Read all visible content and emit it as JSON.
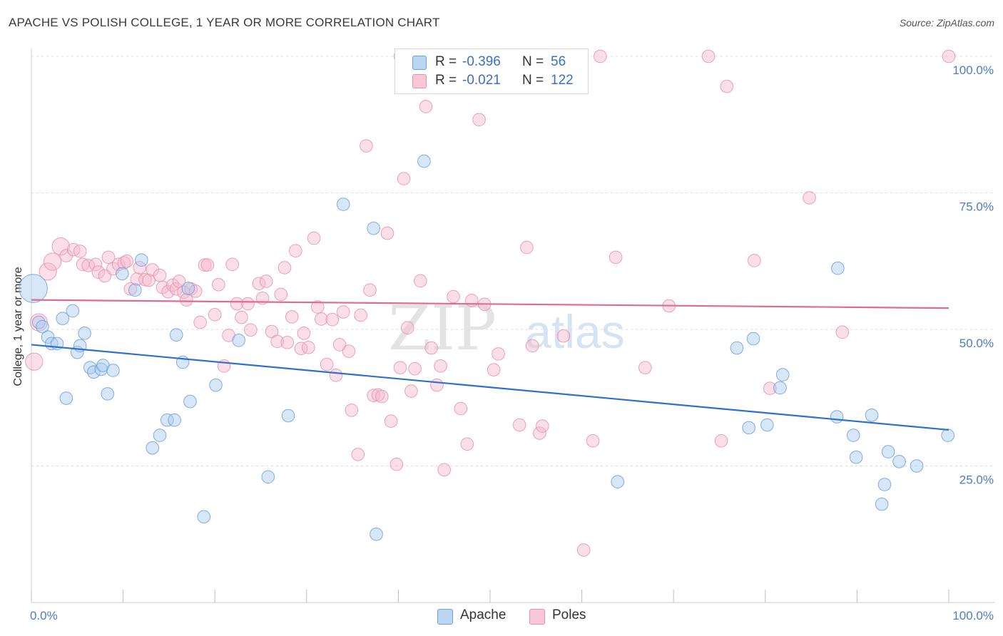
{
  "title": "APACHE VS POLISH COLLEGE, 1 YEAR OR MORE CORRELATION CHART",
  "source": "Source: ZipAtlas.com",
  "watermark": {
    "zip": "ZIP",
    "atlas": "atlas"
  },
  "legend": {
    "apache": {
      "r_label": "R =",
      "r_value": "-0.396",
      "n_label": "N =",
      "n_value": "56"
    },
    "poles": {
      "r_label": "R =",
      "r_value": "-0.021",
      "n_label": "N =",
      "n_value": "122"
    }
  },
  "colors": {
    "apache_fill": "#a9c9f0",
    "apache_stroke": "#6b9fde",
    "apache_line": "#2f6fd0",
    "poles_fill": "#f7b8cb",
    "poles_stroke": "#e890ad",
    "poles_line": "#e06a94",
    "tick_text": "#4a7cc7"
  },
  "chart_data": {
    "type": "scatter",
    "title": "APACHE VS POLISH COLLEGE, 1 YEAR OR MORE CORRELATION CHART",
    "xlabel": "",
    "ylabel": "College, 1 year or more",
    "xlim": [
      0,
      100
    ],
    "ylim": [
      0,
      100
    ],
    "x_tick_labels": [
      "0.0%",
      "100.0%"
    ],
    "y_ticks": [
      {
        "value": 25,
        "label": "25.0%"
      },
      {
        "value": 50,
        "label": "50.0%"
      },
      {
        "value": 75,
        "label": "75.0%"
      },
      {
        "value": 100,
        "label": "100.0%"
      }
    ],
    "series": [
      {
        "name": "Apache",
        "trend": {
          "x0": 0,
          "y0": 47.2,
          "x1": 100,
          "y1": 31.6
        },
        "points": [
          [
            0.2,
            57.5,
            18
          ],
          [
            0.8,
            51.3,
            8
          ],
          [
            1.2,
            50.5,
            8
          ],
          [
            1.8,
            48.6,
            8
          ],
          [
            2.2,
            47.4,
            8
          ],
          [
            2.8,
            47.4,
            8
          ],
          [
            3.4,
            52.0,
            8
          ],
          [
            3.8,
            37.4,
            8
          ],
          [
            4.5,
            53.4,
            8
          ],
          [
            5.0,
            45.8,
            8
          ],
          [
            5.3,
            47.0,
            8
          ],
          [
            5.8,
            49.3,
            8
          ],
          [
            6.4,
            43.0,
            8
          ],
          [
            6.8,
            42.2,
            8
          ],
          [
            7.6,
            42.7,
            8
          ],
          [
            7.8,
            43.4,
            8
          ],
          [
            8.3,
            38.2,
            8
          ],
          [
            8.9,
            42.5,
            8
          ],
          [
            9.9,
            60.2,
            8
          ],
          [
            11.3,
            57.2,
            8
          ],
          [
            12.0,
            62.7,
            8
          ],
          [
            13.2,
            28.3,
            8
          ],
          [
            14.0,
            30.6,
            8
          ],
          [
            14.8,
            33.4,
            8
          ],
          [
            15.6,
            33.4,
            8
          ],
          [
            15.8,
            49.0,
            8
          ],
          [
            16.5,
            44.0,
            8
          ],
          [
            17.1,
            57.5,
            8
          ],
          [
            17.3,
            36.8,
            8
          ],
          [
            18.8,
            15.7,
            8
          ],
          [
            20.1,
            39.8,
            8
          ],
          [
            22.6,
            48.0,
            8
          ],
          [
            25.8,
            23.0,
            8
          ],
          [
            28.0,
            34.2,
            8
          ],
          [
            34.0,
            72.9,
            8
          ],
          [
            37.3,
            68.5,
            8
          ],
          [
            37.6,
            12.5,
            8
          ],
          [
            42.8,
            80.8,
            8
          ],
          [
            63.9,
            22.1,
            8
          ],
          [
            76.9,
            46.6,
            8
          ],
          [
            78.2,
            32.0,
            8
          ],
          [
            78.7,
            48.3,
            8
          ],
          [
            80.2,
            32.5,
            8
          ],
          [
            81.6,
            39.3,
            8
          ],
          [
            81.9,
            41.7,
            8
          ],
          [
            87.9,
            61.2,
            8
          ],
          [
            87.8,
            34.0,
            8
          ],
          [
            89.6,
            30.6,
            8
          ],
          [
            89.9,
            26.6,
            8
          ],
          [
            91.6,
            34.3,
            8
          ],
          [
            92.7,
            18.0,
            8
          ],
          [
            93.0,
            21.6,
            8
          ],
          [
            93.4,
            27.6,
            8
          ],
          [
            94.6,
            25.8,
            8
          ],
          [
            96.5,
            25.0,
            8
          ],
          [
            99.9,
            30.6,
            8
          ]
        ]
      },
      {
        "name": "Poles",
        "trend": {
          "x0": 0,
          "y0": 55.4,
          "x1": 100,
          "y1": 53.9
        },
        "points": [
          [
            0.3,
            44.1,
            11
          ],
          [
            0.8,
            51.3,
            11
          ],
          [
            1.8,
            60.6,
            11
          ],
          [
            2.3,
            62.4,
            11
          ],
          [
            3.2,
            65.2,
            11
          ],
          [
            3.8,
            63.5,
            8
          ],
          [
            4.6,
            64.6,
            8
          ],
          [
            5.3,
            64.3,
            8
          ],
          [
            5.6,
            61.9,
            8
          ],
          [
            6.2,
            61.7,
            8
          ],
          [
            7.0,
            61.9,
            8
          ],
          [
            7.3,
            60.5,
            8
          ],
          [
            8.0,
            59.8,
            8
          ],
          [
            8.4,
            63.2,
            8
          ],
          [
            8.9,
            61.1,
            8
          ],
          [
            9.5,
            61.9,
            8
          ],
          [
            10.1,
            62.2,
            8
          ],
          [
            10.4,
            62.5,
            8
          ],
          [
            10.8,
            57.4,
            8
          ],
          [
            11.5,
            59.2,
            8
          ],
          [
            11.8,
            61.3,
            8
          ],
          [
            12.4,
            59.1,
            8
          ],
          [
            12.8,
            59.0,
            8
          ],
          [
            13.2,
            60.9,
            8
          ],
          [
            14.0,
            59.9,
            8
          ],
          [
            14.3,
            57.7,
            8
          ],
          [
            14.9,
            56.9,
            8
          ],
          [
            15.4,
            58.1,
            8
          ],
          [
            15.8,
            57.4,
            8
          ],
          [
            16.1,
            58.8,
            8
          ],
          [
            16.6,
            56.8,
            8
          ],
          [
            16.9,
            55.4,
            8
          ],
          [
            17.4,
            57.4,
            8
          ],
          [
            17.9,
            57.0,
            8
          ],
          [
            18.4,
            51.3,
            8
          ],
          [
            18.9,
            61.8,
            8
          ],
          [
            19.2,
            61.8,
            8
          ],
          [
            20.0,
            52.7,
            8
          ],
          [
            20.4,
            58.2,
            8
          ],
          [
            21.0,
            43.3,
            8
          ],
          [
            21.5,
            48.9,
            8
          ],
          [
            21.9,
            61.9,
            8
          ],
          [
            22.4,
            54.7,
            8
          ],
          [
            22.9,
            52.2,
            8
          ],
          [
            23.6,
            54.7,
            8
          ],
          [
            23.9,
            49.9,
            8
          ],
          [
            24.8,
            58.4,
            8
          ],
          [
            25.2,
            55.7,
            8
          ],
          [
            25.6,
            58.8,
            8
          ],
          [
            26.2,
            49.6,
            8
          ],
          [
            26.8,
            47.8,
            8
          ],
          [
            27.2,
            56.4,
            8
          ],
          [
            27.6,
            61.3,
            8
          ],
          [
            27.9,
            47.6,
            8
          ],
          [
            28.4,
            52.3,
            8
          ],
          [
            28.8,
            64.4,
            8
          ],
          [
            29.4,
            46.5,
            8
          ],
          [
            29.7,
            49.3,
            8
          ],
          [
            30.2,
            46.7,
            8
          ],
          [
            30.8,
            66.7,
            8
          ],
          [
            31.2,
            54.1,
            8
          ],
          [
            31.6,
            51.9,
            8
          ],
          [
            32.2,
            43.6,
            8
          ],
          [
            32.8,
            51.8,
            8
          ],
          [
            33.2,
            41.6,
            8
          ],
          [
            33.6,
            47.2,
            8
          ],
          [
            34.0,
            53.2,
            8
          ],
          [
            34.6,
            46.0,
            8
          ],
          [
            34.9,
            35.2,
            8
          ],
          [
            35.6,
            27.1,
            8
          ],
          [
            35.9,
            52.6,
            8
          ],
          [
            36.5,
            83.6,
            8
          ],
          [
            36.9,
            57.2,
            8
          ],
          [
            37.3,
            37.9,
            8
          ],
          [
            37.8,
            38.0,
            8
          ],
          [
            38.2,
            37.7,
            8
          ],
          [
            38.8,
            67.6,
            8
          ],
          [
            39.2,
            33.2,
            8
          ],
          [
            39.8,
            25.3,
            8
          ],
          [
            40.2,
            43.0,
            8
          ],
          [
            40.6,
            77.6,
            8
          ],
          [
            41.0,
            50.3,
            8
          ],
          [
            41.4,
            38.7,
            8
          ],
          [
            41.8,
            42.8,
            8
          ],
          [
            42.4,
            58.9,
            8
          ],
          [
            43.0,
            90.8,
            8
          ],
          [
            43.6,
            46.6,
            8
          ],
          [
            44.2,
            39.8,
            8
          ],
          [
            44.6,
            43.3,
            8
          ],
          [
            45.0,
            24.3,
            8
          ],
          [
            46.0,
            56.0,
            8
          ],
          [
            46.8,
            35.5,
            8
          ],
          [
            47.5,
            29.0,
            8
          ],
          [
            48.0,
            55.3,
            8
          ],
          [
            48.8,
            88.4,
            8
          ],
          [
            49.4,
            54.6,
            8
          ],
          [
            50.4,
            42.6,
            8
          ],
          [
            50.9,
            45.5,
            8
          ],
          [
            53.2,
            32.5,
            8
          ],
          [
            54.0,
            65.0,
            8
          ],
          [
            54.6,
            47.0,
            8
          ],
          [
            55.4,
            31.0,
            8
          ],
          [
            55.7,
            32.3,
            8
          ],
          [
            58.0,
            48.8,
            8
          ],
          [
            60.2,
            9.6,
            8
          ],
          [
            61.2,
            29.6,
            8
          ],
          [
            62.0,
            100.0,
            8
          ],
          [
            63.7,
            63.2,
            8
          ],
          [
            66.9,
            43.0,
            8
          ],
          [
            69.5,
            54.3,
            8
          ],
          [
            73.8,
            100.0,
            8
          ],
          [
            75.8,
            94.5,
            8
          ],
          [
            75.2,
            29.6,
            8
          ],
          [
            78.8,
            62.6,
            8
          ],
          [
            80.5,
            39.2,
            8
          ],
          [
            84.8,
            74.1,
            8
          ],
          [
            88.4,
            49.5,
            8
          ],
          [
            100.0,
            100.0,
            8
          ],
          [
            40.2,
            100.0,
            8
          ],
          [
            50.2,
            100.0,
            8
          ]
        ]
      }
    ]
  }
}
